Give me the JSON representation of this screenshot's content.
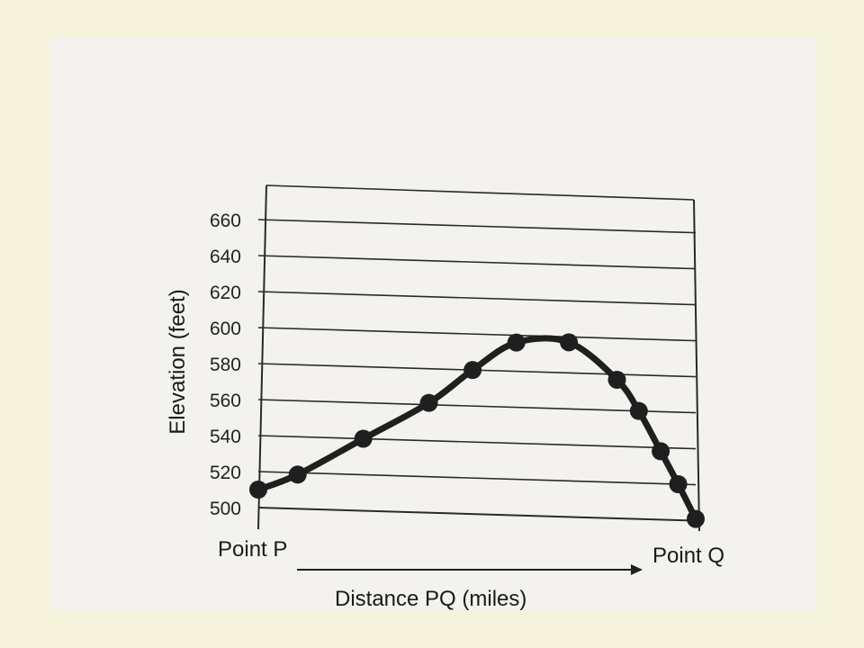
{
  "chart_data": {
    "type": "line",
    "title": "",
    "xlabel": "Distance PQ (miles)",
    "ylabel": "Elevation (feet)",
    "x_start_label": "Point P",
    "x_end_label": "Point Q",
    "ylim": [
      500,
      680
    ],
    "yticks": [
      500,
      520,
      540,
      560,
      580,
      600,
      620,
      640,
      660
    ],
    "grid": true,
    "series": [
      {
        "x": [
          0,
          0.09,
          0.24,
          0.39,
          0.49,
          0.59,
          0.71,
          0.82,
          0.87,
          0.92,
          0.96,
          1.0
        ],
        "y": [
          510,
          519,
          540,
          561,
          580,
          596,
          597,
          577,
          560,
          538,
          520,
          501
        ]
      }
    ],
    "colors": {
      "line": "#1f1f1f",
      "grid": "#2a2a2a",
      "paper": "#f3f2ee",
      "background": "#f6f3dc"
    }
  }
}
